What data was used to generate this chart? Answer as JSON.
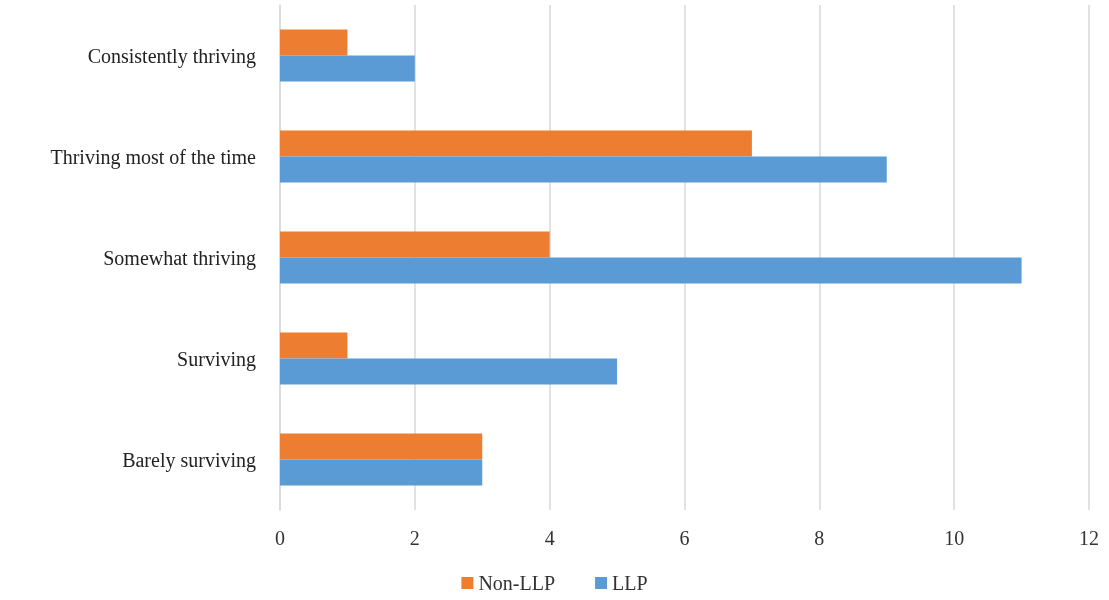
{
  "chart_data": {
    "type": "bar",
    "orientation": "horizontal",
    "categories": [
      "Consistently thriving",
      "Thriving most of the time",
      "Somewhat thriving",
      "Surviving",
      "Barely surviving"
    ],
    "series": [
      {
        "name": "Non-LLP",
        "color": "#ed7d31",
        "values": [
          1,
          7,
          4,
          1,
          3
        ]
      },
      {
        "name": "LLP",
        "color": "#5b9bd5",
        "values": [
          2,
          9,
          11,
          5,
          3
        ]
      }
    ],
    "xlim": [
      0,
      12
    ],
    "xticks": [
      0,
      2,
      4,
      6,
      8,
      10,
      12
    ],
    "grid": "x",
    "legend": "bottom"
  }
}
